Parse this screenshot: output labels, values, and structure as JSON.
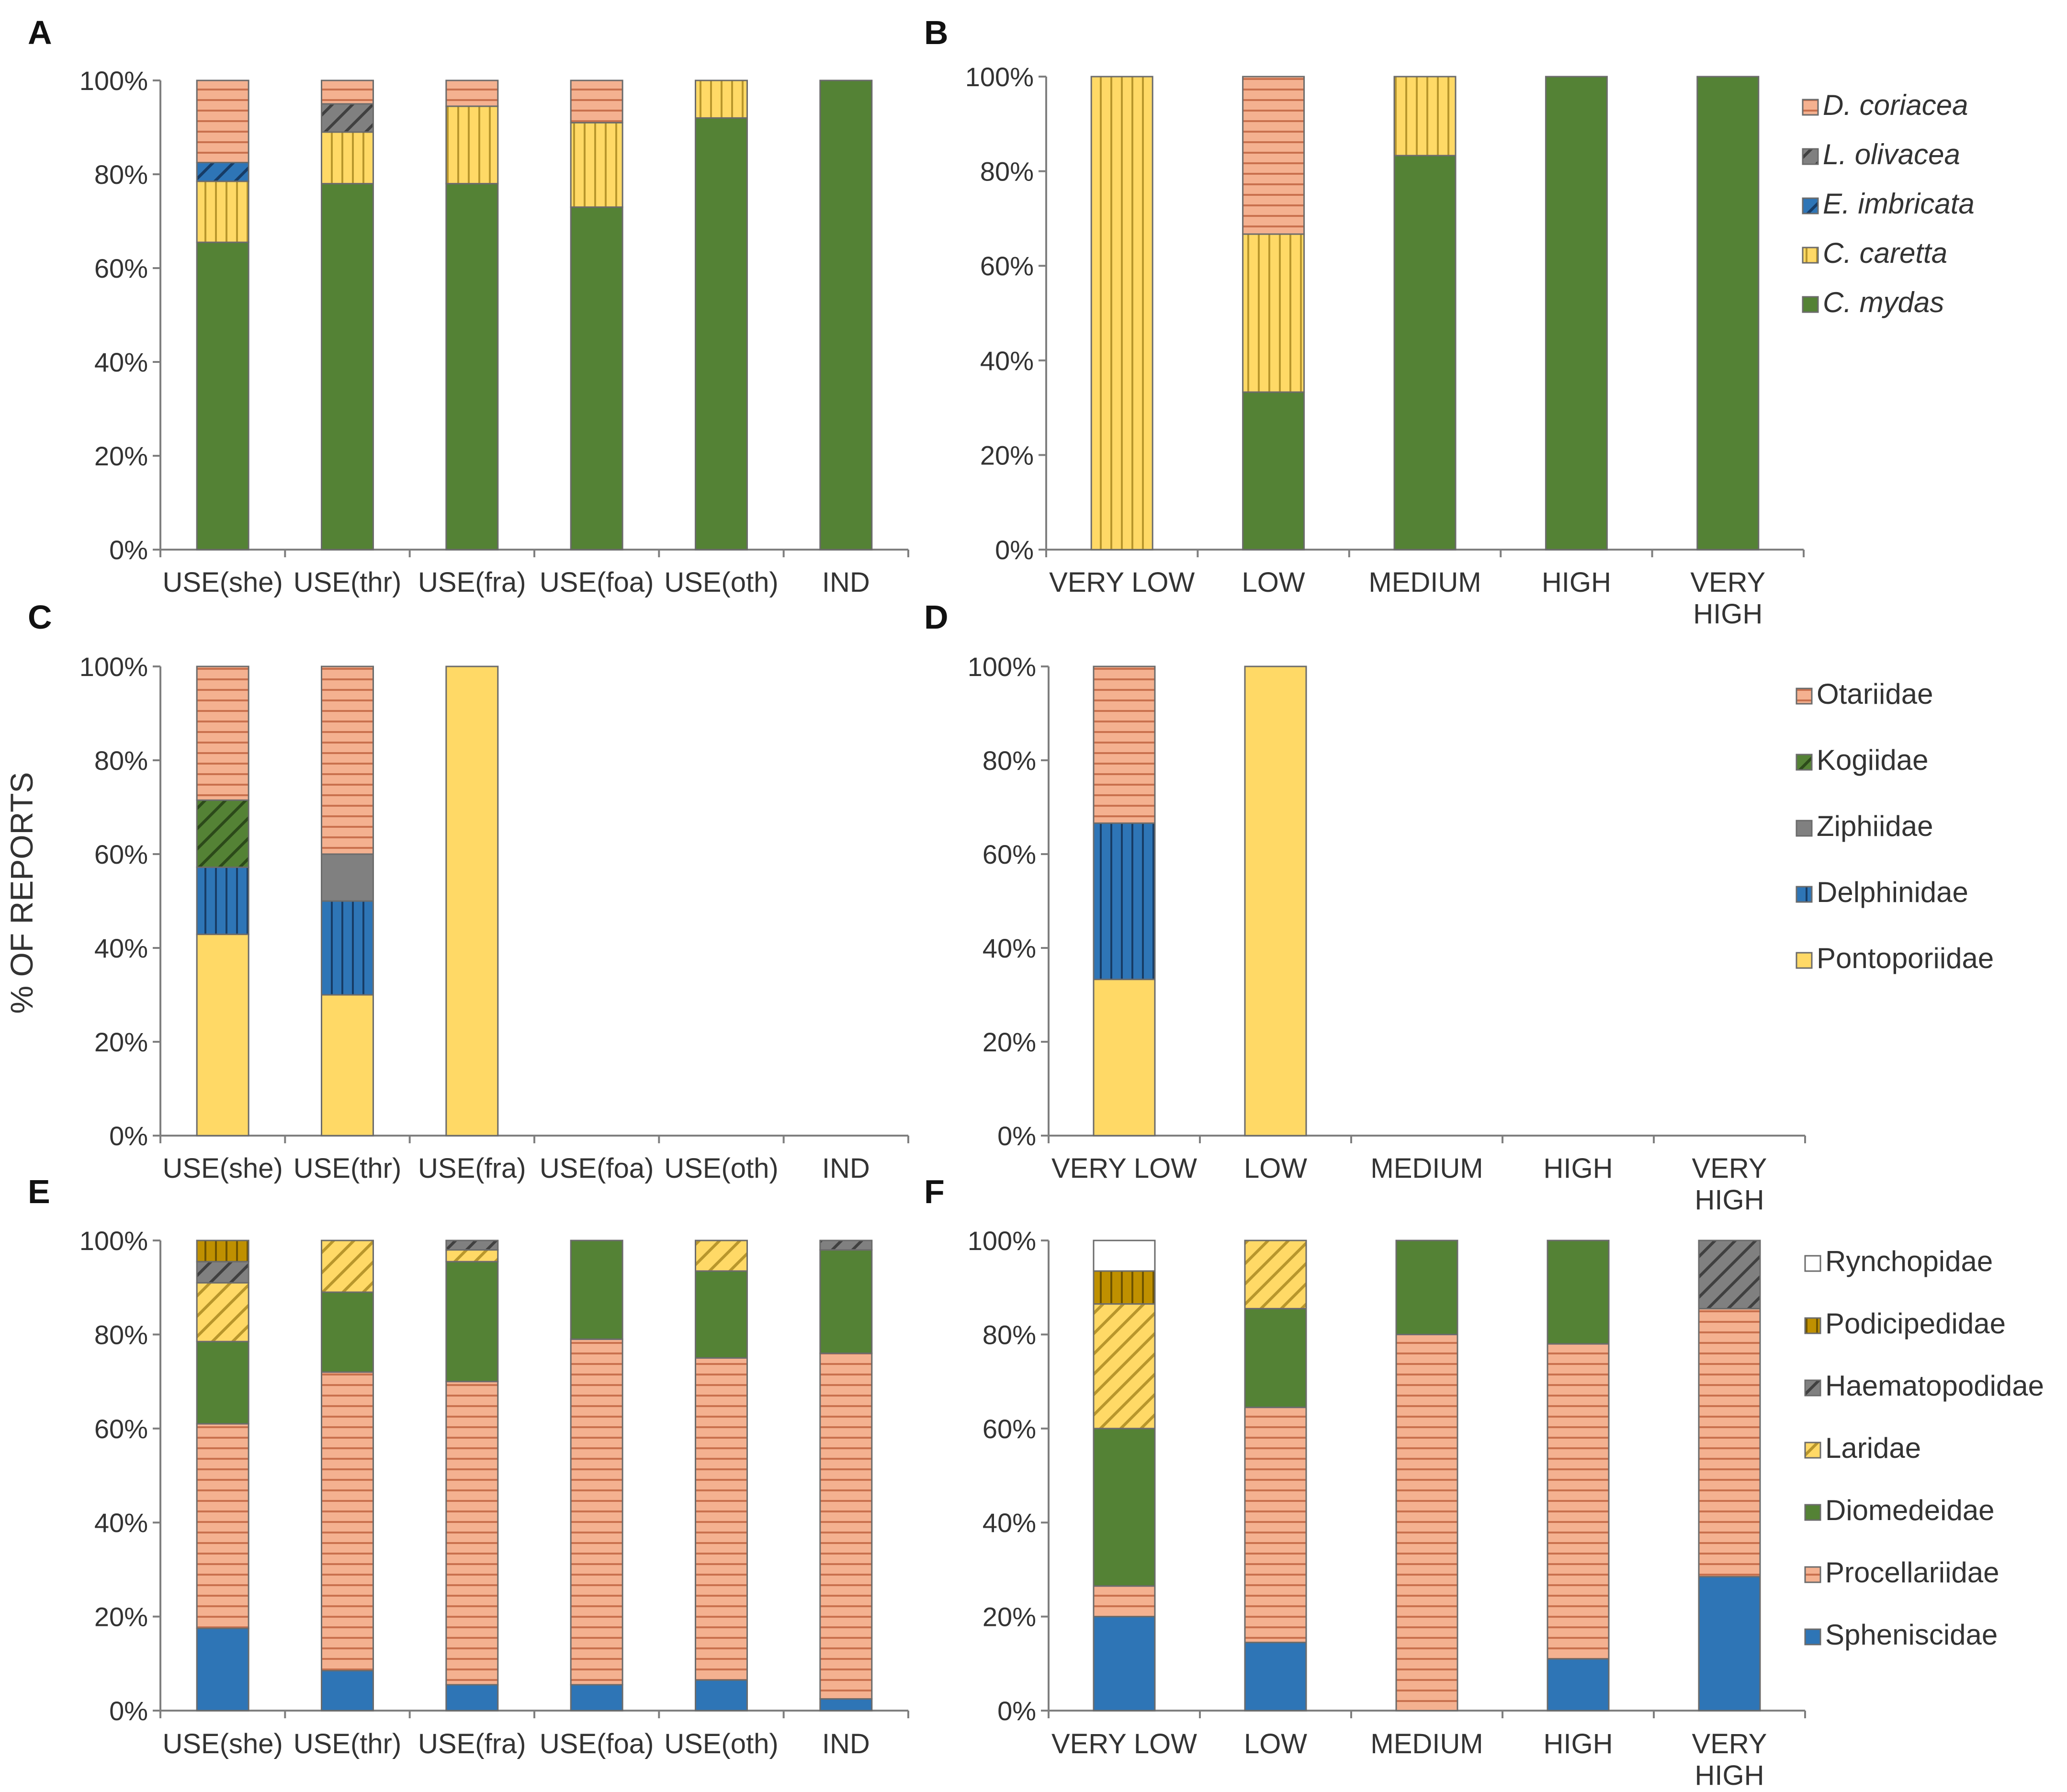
{
  "y_axis_label": "% OF REPORTS",
  "colors": {
    "peach": "#f4b190",
    "peach_line": "#c9714e",
    "yellow": "#ffd966",
    "yellow_line": "#b8962c",
    "blue": "#2e75b6",
    "blue_line": "#173c66",
    "green": "#548235",
    "green_line": "#2c4a1a",
    "gray": "#808080",
    "gray_line": "#404040",
    "gold": "#bf9000",
    "gold_line": "#6f5400",
    "white": "#ffffff"
  },
  "legends": [
    {
      "group": "turtles",
      "italic": true,
      "items": [
        {
          "name": "D. coriacea",
          "fill": "peach-hlines"
        },
        {
          "name": "L. olivacea",
          "fill": "gray-diag"
        },
        {
          "name": "E. imbricata",
          "fill": "blue-diag"
        },
        {
          "name": "C. caretta",
          "fill": "yellow-vlines"
        },
        {
          "name": "C. mydas",
          "fill": "green-solid"
        }
      ]
    },
    {
      "group": "mammals",
      "italic": false,
      "items": [
        {
          "name": "Otariidae",
          "fill": "peach-hlines"
        },
        {
          "name": "Kogiidae",
          "fill": "green-diag"
        },
        {
          "name": "Ziphiidae",
          "fill": "gray-solid"
        },
        {
          "name": "Delphinidae",
          "fill": "blue-vlines"
        },
        {
          "name": "Pontoporiidae",
          "fill": "yellow-solid"
        }
      ]
    },
    {
      "group": "birds",
      "italic": false,
      "items": [
        {
          "name": "Rynchopidae",
          "fill": "white-solid"
        },
        {
          "name": "Podicipedidae",
          "fill": "gold-vlines"
        },
        {
          "name": "Haematopodidae",
          "fill": "gray-diag"
        },
        {
          "name": "Laridae",
          "fill": "yellow-diag"
        },
        {
          "name": "Diomedeidae",
          "fill": "green-solid"
        },
        {
          "name": "Procellariidae",
          "fill": "peach-hlines"
        },
        {
          "name": "Spheniscidae",
          "fill": "blue-solid"
        }
      ]
    }
  ],
  "chart_data": [
    {
      "panel": "A",
      "type": "bar",
      "stacked": true,
      "group": "turtles",
      "categories": [
        "USE(she)",
        "USE(thr)",
        "USE(fra)",
        "USE(foa)",
        "USE(oth)",
        "IND"
      ],
      "yticks": [
        "0%",
        "20%",
        "40%",
        "60%",
        "80%",
        "100%"
      ],
      "ylim": [
        0,
        100
      ],
      "series": [
        {
          "name": "C. mydas",
          "fill": "green-solid",
          "values": [
            65.5,
            78,
            78,
            73,
            92,
            100
          ]
        },
        {
          "name": "C. caretta",
          "fill": "yellow-vlines",
          "values": [
            13,
            11,
            16.5,
            18,
            8,
            0
          ]
        },
        {
          "name": "E. imbricata",
          "fill": "blue-diag",
          "values": [
            4,
            0,
            0,
            0,
            0,
            0
          ]
        },
        {
          "name": "L. olivacea",
          "fill": "gray-diag",
          "values": [
            0,
            6,
            0,
            0,
            0,
            0
          ]
        },
        {
          "name": "D. coriacea",
          "fill": "peach-hlines",
          "values": [
            17.5,
            5,
            5.5,
            9,
            0,
            0
          ]
        }
      ]
    },
    {
      "panel": "B",
      "type": "bar",
      "stacked": true,
      "group": "turtles",
      "categories": [
        "VERY LOW",
        "LOW",
        "MEDIUM",
        "HIGH",
        "VERY HIGH"
      ],
      "yticks": [
        "0%",
        "20%",
        "40%",
        "60%",
        "80%",
        "100%"
      ],
      "ylim": [
        0,
        100
      ],
      "series": [
        {
          "name": "C. mydas",
          "fill": "green-solid",
          "values": [
            0,
            33.3,
            83.3,
            100,
            100
          ]
        },
        {
          "name": "C. caretta",
          "fill": "yellow-vlines",
          "values": [
            100,
            33.4,
            16.7,
            0,
            0
          ]
        },
        {
          "name": "E. imbricata",
          "fill": "blue-diag",
          "values": [
            0,
            0,
            0,
            0,
            0
          ]
        },
        {
          "name": "L. olivacea",
          "fill": "gray-diag",
          "values": [
            0,
            0,
            0,
            0,
            0
          ]
        },
        {
          "name": "D. coriacea",
          "fill": "peach-hlines",
          "values": [
            0,
            33.3,
            0,
            0,
            0
          ]
        }
      ]
    },
    {
      "panel": "C",
      "type": "bar",
      "stacked": true,
      "group": "mammals",
      "categories": [
        "USE(she)",
        "USE(thr)",
        "USE(fra)",
        "USE(foa)",
        "USE(oth)",
        "IND"
      ],
      "yticks": [
        "0%",
        "20%",
        "40%",
        "60%",
        "80%",
        "100%"
      ],
      "ylim": [
        0,
        100
      ],
      "series": [
        {
          "name": "Pontoporiidae",
          "fill": "yellow-solid",
          "values": [
            42.9,
            30,
            100,
            0,
            0,
            0
          ]
        },
        {
          "name": "Delphinidae",
          "fill": "blue-vlines",
          "values": [
            14.3,
            20,
            0,
            0,
            0,
            0
          ]
        },
        {
          "name": "Ziphiidae",
          "fill": "gray-solid",
          "values": [
            0,
            10,
            0,
            0,
            0,
            0
          ]
        },
        {
          "name": "Kogiidae",
          "fill": "green-diag",
          "values": [
            14.3,
            0,
            0,
            0,
            0,
            0
          ]
        },
        {
          "name": "Otariidae",
          "fill": "peach-hlines",
          "values": [
            28.5,
            40,
            0,
            0,
            0,
            0
          ]
        }
      ]
    },
    {
      "panel": "D",
      "type": "bar",
      "stacked": true,
      "group": "mammals",
      "categories": [
        "VERY LOW",
        "LOW",
        "MEDIUM",
        "HIGH",
        "VERY HIGH"
      ],
      "yticks": [
        "0%",
        "20%",
        "40%",
        "60%",
        "80%",
        "100%"
      ],
      "ylim": [
        0,
        100
      ],
      "series": [
        {
          "name": "Pontoporiidae",
          "fill": "yellow-solid",
          "values": [
            33.3,
            100,
            0,
            0,
            0
          ]
        },
        {
          "name": "Delphinidae",
          "fill": "blue-vlines",
          "values": [
            33.3,
            0,
            0,
            0,
            0
          ]
        },
        {
          "name": "Ziphiidae",
          "fill": "gray-solid",
          "values": [
            0,
            0,
            0,
            0,
            0
          ]
        },
        {
          "name": "Kogiidae",
          "fill": "green-diag",
          "values": [
            0,
            0,
            0,
            0,
            0
          ]
        },
        {
          "name": "Otariidae",
          "fill": "peach-hlines",
          "values": [
            33.4,
            0,
            0,
            0,
            0
          ]
        }
      ]
    },
    {
      "panel": "E",
      "type": "bar",
      "stacked": true,
      "group": "birds",
      "categories": [
        "USE(she)",
        "USE(thr)",
        "USE(fra)",
        "USE(foa)",
        "USE(oth)",
        "IND"
      ],
      "yticks": [
        "0%",
        "20%",
        "40%",
        "60%",
        "80%",
        "100%"
      ],
      "ylim": [
        0,
        100
      ],
      "series": [
        {
          "name": "Spheniscidae",
          "fill": "blue-solid",
          "values": [
            17.5,
            8.5,
            5.5,
            5.5,
            6.5,
            2.5
          ]
        },
        {
          "name": "Procellariidae",
          "fill": "peach-hlines",
          "values": [
            43.5,
            63.5,
            64.5,
            73.5,
            68.5,
            73.5
          ]
        },
        {
          "name": "Diomedeidae",
          "fill": "green-solid",
          "values": [
            17.5,
            17,
            25.5,
            21,
            18.5,
            22
          ]
        },
        {
          "name": "Laridae",
          "fill": "yellow-diag",
          "values": [
            12.5,
            11,
            2.5,
            0,
            6.5,
            0
          ]
        },
        {
          "name": "Haematopodidae",
          "fill": "gray-diag",
          "values": [
            4.5,
            0,
            2,
            0,
            0,
            2
          ]
        },
        {
          "name": "Podicipedidae",
          "fill": "gold-vlines",
          "values": [
            4.5,
            0,
            0,
            0,
            0,
            0
          ]
        },
        {
          "name": "Rynchopidae",
          "fill": "white-solid",
          "values": [
            0,
            0,
            0,
            0,
            0,
            0
          ]
        }
      ]
    },
    {
      "panel": "F",
      "type": "bar",
      "stacked": true,
      "group": "birds",
      "categories": [
        "VERY LOW",
        "LOW",
        "MEDIUM",
        "HIGH",
        "VERY HIGH"
      ],
      "yticks": [
        "0%",
        "20%",
        "40%",
        "60%",
        "80%",
        "100%"
      ],
      "ylim": [
        0,
        100
      ],
      "series": [
        {
          "name": "Spheniscidae",
          "fill": "blue-solid",
          "values": [
            20,
            14.5,
            0,
            11,
            28.5
          ]
        },
        {
          "name": "Procellariidae",
          "fill": "peach-hlines",
          "values": [
            6.5,
            50,
            80,
            67,
            57
          ]
        },
        {
          "name": "Diomedeidae",
          "fill": "green-solid",
          "values": [
            33.5,
            21,
            20,
            22,
            0
          ]
        },
        {
          "name": "Laridae",
          "fill": "yellow-diag",
          "values": [
            26.5,
            14.5,
            0,
            0,
            0
          ]
        },
        {
          "name": "Haematopodidae",
          "fill": "gray-diag",
          "values": [
            0,
            0,
            0,
            0,
            14.5
          ]
        },
        {
          "name": "Podicipedidae",
          "fill": "gold-vlines",
          "values": [
            7,
            0,
            0,
            0,
            0
          ]
        },
        {
          "name": "Rynchopidae",
          "fill": "white-solid",
          "values": [
            6.5,
            0,
            0,
            0,
            0
          ]
        }
      ]
    }
  ]
}
